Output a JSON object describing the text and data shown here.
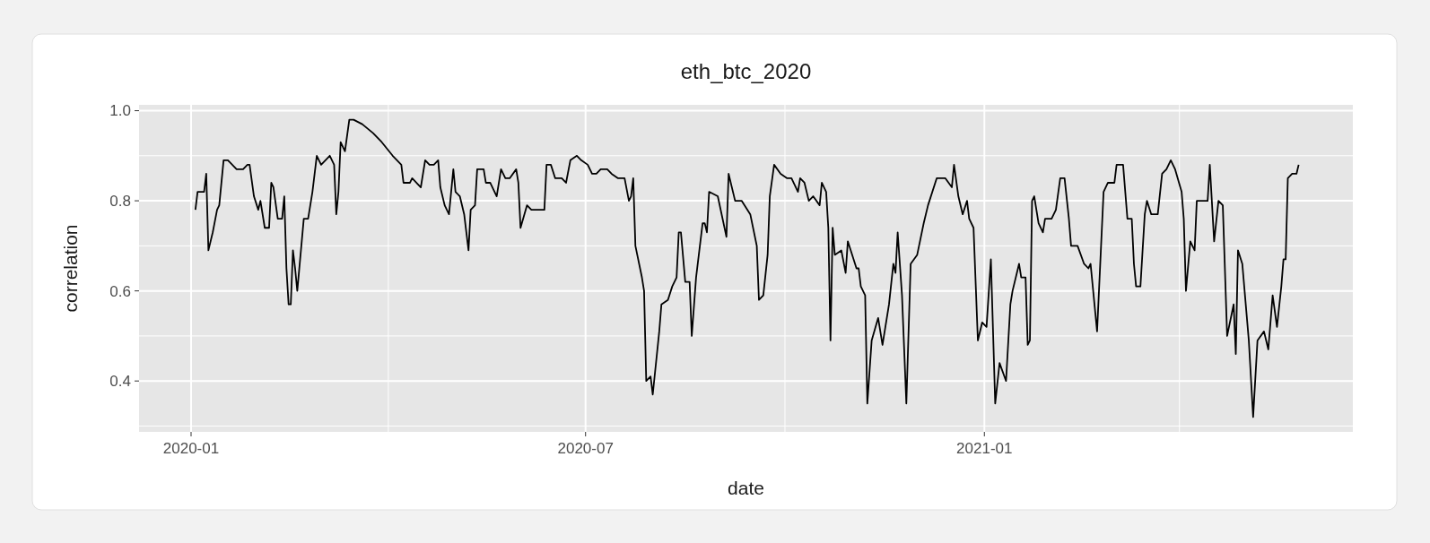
{
  "chart_data": {
    "type": "line",
    "title": "eth_btc_2020",
    "xlabel": "date",
    "ylabel": "correlation",
    "xlim": [
      "2019-12-08",
      "2021-06-20"
    ],
    "ylim": [
      0.287,
      1.013
    ],
    "xticks": [
      "2020-01",
      {
        "value": "2020-04",
        "label": null
      },
      "2020-07",
      {
        "value": "2020-10",
        "label": null
      },
      "2021-01",
      {
        "value": "2021-04",
        "label": null
      }
    ],
    "yticks": [
      {
        "value": 0.3,
        "label": null
      },
      0.4,
      {
        "value": 0.5,
        "label": null
      },
      0.6,
      {
        "value": 0.7,
        "label": null
      },
      0.8,
      {
        "value": 0.9,
        "label": null
      },
      {
        "value": 1,
        "label": "1.0"
      }
    ],
    "grid": true,
    "marker": "none",
    "line_style": "solid",
    "x": [
      "2020-01-03",
      "2020-01-04",
      "2020-01-07",
      "2020-01-08",
      "2020-01-09",
      "2020-01-11",
      "2020-01-13",
      "2020-01-14",
      "2020-01-16",
      "2020-01-18",
      "2020-01-22",
      "2020-01-25",
      "2020-01-27",
      "2020-01-28",
      "2020-01-30",
      "2020-02-01",
      "2020-02-02",
      "2020-02-04",
      "2020-02-06",
      "2020-02-07",
      "2020-02-08",
      "2020-02-10",
      "2020-02-12",
      "2020-02-13",
      "2020-02-14",
      "2020-02-15",
      "2020-02-16",
      "2020-02-17",
      "2020-02-18",
      "2020-02-19",
      "2020-02-22",
      "2020-02-24",
      "2020-02-26",
      "2020-02-28",
      "2020-03-01",
      "2020-03-03",
      "2020-03-05",
      "2020-03-07",
      "2020-03-08",
      "2020-03-09",
      "2020-03-10",
      "2020-03-12",
      "2020-03-14",
      "2020-03-16",
      "2020-03-20",
      "2020-03-25",
      "2020-03-29",
      "2020-04-03",
      "2020-04-07",
      "2020-04-08",
      "2020-04-11",
      "2020-04-12",
      "2020-04-16",
      "2020-04-18",
      "2020-04-20",
      "2020-04-22",
      "2020-04-24",
      "2020-04-25",
      "2020-04-27",
      "2020-04-29",
      "2020-05-01",
      "2020-05-02",
      "2020-05-04",
      "2020-05-06",
      "2020-05-08",
      "2020-05-09",
      "2020-05-11",
      "2020-05-12",
      "2020-05-15",
      "2020-05-16",
      "2020-05-18",
      "2020-05-21",
      "2020-05-23",
      "2020-05-25",
      "2020-05-27",
      "2020-05-30",
      "2020-05-31",
      "2020-06-01",
      "2020-06-04",
      "2020-06-06",
      "2020-06-12",
      "2020-06-13",
      "2020-06-15",
      "2020-06-17",
      "2020-06-20",
      "2020-06-22",
      "2020-06-24",
      "2020-06-27",
      "2020-06-29",
      "2020-07-02",
      "2020-07-04",
      "2020-07-06",
      "2020-07-08",
      "2020-07-11",
      "2020-07-13",
      "2020-07-16",
      "2020-07-19",
      "2020-07-21",
      "2020-07-22",
      "2020-07-23",
      "2020-07-24",
      "2020-07-27",
      "2020-07-28",
      "2020-07-29",
      "2020-07-31",
      "2020-08-01",
      "2020-08-04",
      "2020-08-05",
      "2020-08-08",
      "2020-08-10",
      "2020-08-12",
      "2020-08-13",
      "2020-08-14",
      "2020-08-16",
      "2020-08-18",
      "2020-08-19",
      "2020-08-21",
      "2020-08-24",
      "2020-08-25",
      "2020-08-26",
      "2020-08-27",
      "2020-08-31",
      "2020-09-04",
      "2020-09-05",
      "2020-09-08",
      "2020-09-11",
      "2020-09-15",
      "2020-09-18",
      "2020-09-19",
      "2020-09-21",
      "2020-09-23",
      "2020-09-24",
      "2020-09-26",
      "2020-09-29",
      "2020-10-02",
      "2020-10-04",
      "2020-10-07",
      "2020-10-08",
      "2020-10-10",
      "2020-10-12",
      "2020-10-14",
      "2020-10-17",
      "2020-10-18",
      "2020-10-20",
      "2020-10-21",
      "2020-10-22",
      "2020-10-23",
      "2020-10-24",
      "2020-10-27",
      "2020-10-29",
      "2020-10-30",
      "2020-11-03",
      "2020-11-04",
      "2020-11-05",
      "2020-11-07",
      "2020-11-08",
      "2020-11-10",
      "2020-11-13",
      "2020-11-15",
      "2020-11-18",
      "2020-11-20",
      "2020-11-21",
      "2020-11-22",
      "2020-11-24",
      "2020-11-26",
      "2020-11-28",
      "2020-12-01",
      "2020-12-04",
      "2020-12-06",
      "2020-12-10",
      "2020-12-14",
      "2020-12-17",
      "2020-12-18",
      "2020-12-20",
      "2020-12-22",
      "2020-12-24",
      "2020-12-25",
      "2020-12-27",
      "2020-12-29",
      "2020-12-31",
      "2021-01-02",
      "2021-01-04",
      "2021-01-06",
      "2021-01-08",
      "2021-01-11",
      "2021-01-13",
      "2021-01-14",
      "2021-01-17",
      "2021-01-18",
      "2021-01-20",
      "2021-01-21",
      "2021-01-22",
      "2021-01-23",
      "2021-01-24",
      "2021-01-26",
      "2021-01-28",
      "2021-01-29",
      "2021-02-01",
      "2021-02-03",
      "2021-02-05",
      "2021-02-07",
      "2021-02-09",
      "2021-02-10",
      "2021-02-13",
      "2021-02-16",
      "2021-02-18",
      "2021-02-19",
      "2021-02-22",
      "2021-02-25",
      "2021-02-27",
      "2021-03-02",
      "2021-03-03",
      "2021-03-06",
      "2021-03-08",
      "2021-03-10",
      "2021-03-11",
      "2021-03-12",
      "2021-03-14",
      "2021-03-16",
      "2021-03-17",
      "2021-03-19",
      "2021-03-22",
      "2021-03-24",
      "2021-03-26",
      "2021-03-28",
      "2021-03-30",
      "2021-04-02",
      "2021-04-03",
      "2021-04-04",
      "2021-04-06",
      "2021-04-08",
      "2021-04-09",
      "2021-04-11",
      "2021-04-14",
      "2021-04-15",
      "2021-04-17",
      "2021-04-19",
      "2021-04-21",
      "2021-04-23",
      "2021-04-26",
      "2021-04-27",
      "2021-04-28",
      "2021-04-30",
      "2021-05-03",
      "2021-05-05",
      "2021-05-07",
      "2021-05-10",
      "2021-05-12",
      "2021-05-14",
      "2021-05-16",
      "2021-05-18",
      "2021-05-19",
      "2021-05-20",
      "2021-05-21",
      "2021-05-23",
      "2021-05-25",
      "2021-05-26"
    ],
    "series": [
      {
        "color": "#000000",
        "values": [
          0.78,
          0.82,
          0.82,
          0.86,
          0.69,
          0.73,
          0.78,
          0.79,
          0.89,
          0.89,
          0.87,
          0.87,
          0.88,
          0.88,
          0.81,
          0.78,
          0.8,
          0.74,
          0.74,
          0.84,
          0.83,
          0.76,
          0.76,
          0.81,
          0.65,
          0.57,
          0.57,
          0.69,
          0.65,
          0.6,
          0.76,
          0.76,
          0.82,
          0.9,
          0.88,
          0.89,
          0.9,
          0.88,
          0.77,
          0.82,
          0.93,
          0.91,
          0.98,
          0.98,
          0.97,
          0.95,
          0.93,
          0.9,
          0.88,
          0.84,
          0.84,
          0.85,
          0.83,
          0.89,
          0.88,
          0.88,
          0.89,
          0.83,
          0.79,
          0.77,
          0.87,
          0.82,
          0.81,
          0.77,
          0.69,
          0.78,
          0.79,
          0.87,
          0.87,
          0.84,
          0.84,
          0.81,
          0.87,
          0.85,
          0.85,
          0.87,
          0.84,
          0.74,
          0.79,
          0.78,
          0.78,
          0.88,
          0.88,
          0.85,
          0.85,
          0.84,
          0.89,
          0.9,
          0.89,
          0.88,
          0.86,
          0.86,
          0.87,
          0.87,
          0.86,
          0.85,
          0.85,
          0.8,
          0.81,
          0.85,
          0.7,
          0.63,
          0.6,
          0.4,
          0.41,
          0.37,
          0.51,
          0.57,
          0.58,
          0.61,
          0.63,
          0.73,
          0.73,
          0.62,
          0.62,
          0.5,
          0.63,
          0.75,
          0.75,
          0.73,
          0.82,
          0.81,
          0.72,
          0.86,
          0.8,
          0.8,
          0.77,
          0.7,
          0.58,
          0.59,
          0.68,
          0.81,
          0.88,
          0.86,
          0.85,
          0.85,
          0.82,
          0.85,
          0.84,
          0.8,
          0.81,
          0.79,
          0.84,
          0.82,
          0.74,
          0.49,
          0.74,
          0.68,
          0.69,
          0.64,
          0.71,
          0.65,
          0.65,
          0.61,
          0.59,
          0.35,
          0.49,
          0.54,
          0.48,
          0.57,
          0.66,
          0.64,
          0.73,
          0.59,
          0.35,
          0.66,
          0.68,
          0.75,
          0.79,
          0.85,
          0.85,
          0.83,
          0.88,
          0.81,
          0.77,
          0.8,
          0.76,
          0.74,
          0.49,
          0.53,
          0.52,
          0.67,
          0.35,
          0.44,
          0.4,
          0.57,
          0.6,
          0.66,
          0.63,
          0.63,
          0.48,
          0.49,
          0.8,
          0.81,
          0.75,
          0.73,
          0.76,
          0.76,
          0.78,
          0.85,
          0.85,
          0.76,
          0.7,
          0.7,
          0.66,
          0.65,
          0.66,
          0.51,
          0.82,
          0.84,
          0.84,
          0.88,
          0.88,
          0.76,
          0.76,
          0.66,
          0.61,
          0.61,
          0.77,
          0.8,
          0.77,
          0.77,
          0.86,
          0.87,
          0.89,
          0.87,
          0.82,
          0.76,
          0.6,
          0.71,
          0.69,
          0.8,
          0.8,
          0.8,
          0.88,
          0.71,
          0.8,
          0.79,
          0.5,
          0.57,
          0.46,
          0.69,
          0.66,
          0.49,
          0.32,
          0.49,
          0.51,
          0.47,
          0.59,
          0.52,
          0.61,
          0.67,
          0.67,
          0.85,
          0.86,
          0.86,
          0.88
        ]
      }
    ]
  }
}
